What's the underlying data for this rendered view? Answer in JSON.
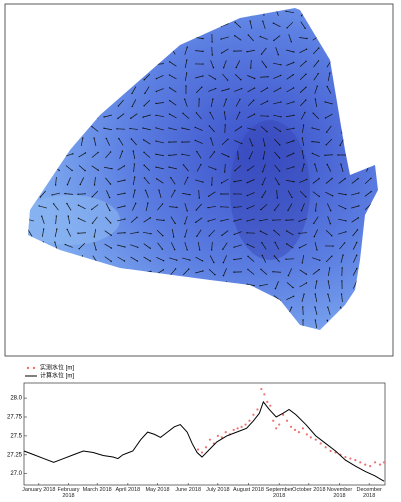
{
  "chart_data": {
    "type": "line",
    "series": [
      {
        "name": "实测水位 [m]",
        "color": "#f07070",
        "marker": "dot",
        "x": [
          176,
          180,
          184,
          188,
          192,
          196,
          200,
          204,
          208,
          212,
          216,
          220,
          224,
          228,
          232,
          236,
          240,
          243,
          246,
          249,
          252,
          255,
          258,
          262,
          266,
          270,
          274,
          278,
          282,
          286,
          290,
          295,
          300,
          305,
          310,
          315,
          320,
          325,
          330,
          335,
          340,
          345,
          350,
          355,
          360,
          364
        ],
        "values": [
          27.32,
          27.28,
          27.35,
          27.45,
          27.4,
          27.5,
          27.48,
          27.55,
          27.52,
          27.58,
          27.6,
          27.62,
          27.65,
          27.7,
          27.78,
          27.85,
          28.12,
          28.05,
          27.95,
          27.9,
          27.7,
          27.6,
          27.65,
          27.78,
          27.7,
          27.62,
          27.58,
          27.55,
          27.6,
          27.52,
          27.48,
          27.45,
          27.4,
          27.35,
          27.3,
          27.28,
          27.25,
          27.22,
          27.2,
          27.18,
          27.15,
          27.12,
          27.1,
          27.15,
          27.12,
          27.15
        ]
      },
      {
        "name": "计算水位 [m]",
        "color": "#000000",
        "marker": "line",
        "x": [
          0,
          10,
          20,
          30,
          40,
          50,
          60,
          70,
          80,
          90,
          95,
          100,
          110,
          118,
          125,
          132,
          138,
          145,
          152,
          158,
          165,
          170,
          175,
          180,
          186,
          195,
          205,
          215,
          225,
          232,
          238,
          242,
          248,
          255,
          262,
          268,
          275,
          285,
          295,
          305,
          315,
          325,
          335,
          345,
          355,
          364
        ],
        "values": [
          27.3,
          27.25,
          27.2,
          27.15,
          27.2,
          27.25,
          27.3,
          27.28,
          27.24,
          27.22,
          27.2,
          27.25,
          27.3,
          27.45,
          27.55,
          27.52,
          27.48,
          27.55,
          27.62,
          27.65,
          27.55,
          27.4,
          27.28,
          27.22,
          27.3,
          27.42,
          27.5,
          27.55,
          27.6,
          27.7,
          27.8,
          27.95,
          27.85,
          27.75,
          27.8,
          27.85,
          27.78,
          27.65,
          27.5,
          27.4,
          27.3,
          27.18,
          27.1,
          27.03,
          26.97,
          26.9
        ]
      }
    ],
    "xlim": [
      0,
      365
    ],
    "xticks": [
      {
        "value": 15,
        "label": "January 2018"
      },
      {
        "value": 45,
        "label": "February 2018"
      },
      {
        "value": 74,
        "label": "March 2018"
      },
      {
        "value": 105,
        "label": "April 2018"
      },
      {
        "value": 135,
        "label": "May 2018"
      },
      {
        "value": 166,
        "label": "June 2018"
      },
      {
        "value": 196,
        "label": "July 2018"
      },
      {
        "value": 227,
        "label": "August 2018"
      },
      {
        "value": 258,
        "label": "September 2018"
      },
      {
        "value": 288,
        "label": "October 2018"
      },
      {
        "value": 319,
        "label": "November 2018"
      },
      {
        "value": 349,
        "label": "December 2018"
      }
    ],
    "ylim": [
      26.85,
      28.2
    ],
    "yticks": [
      {
        "value": 27,
        "label": "27.0"
      },
      27.25,
      27.5,
      27.75,
      {
        "value": 28,
        "label": "28.0"
      }
    ]
  }
}
